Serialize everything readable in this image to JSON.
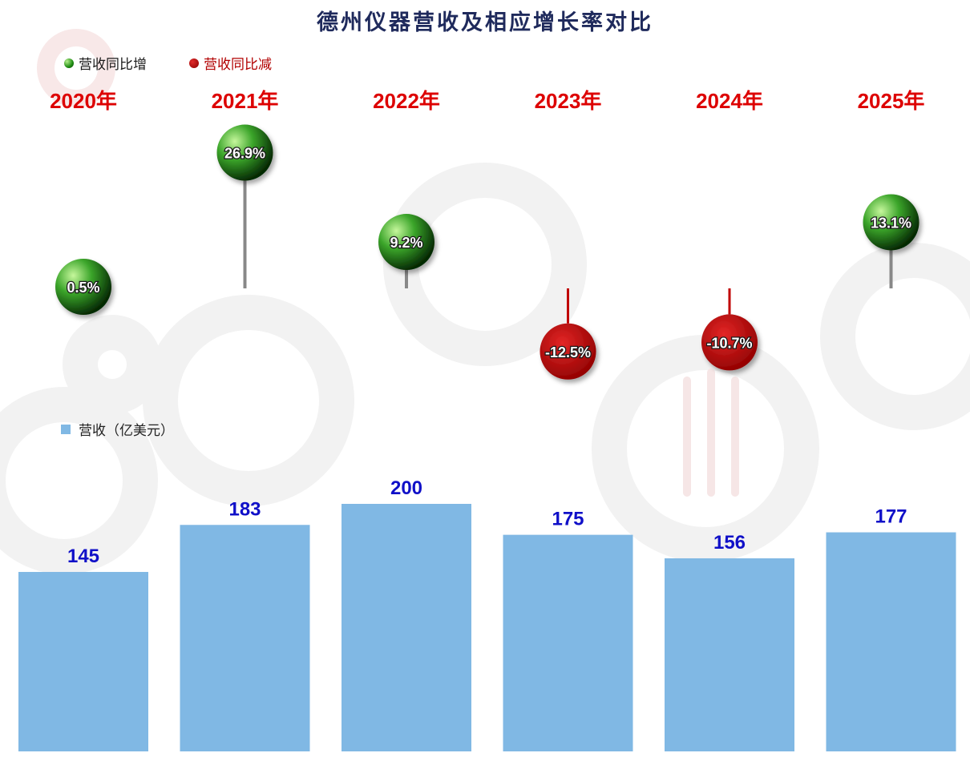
{
  "title": "德州仪器营收及相应增长率对比",
  "legend": {
    "increase_label": "营收同比增",
    "decrease_label": "营收同比减",
    "revenue_label": "营收（亿美元）"
  },
  "colors": {
    "bar": "#80b8e4",
    "bar_label": "#1010c8",
    "year_label": "#dd0000",
    "positive_ball": "#2e9e1e",
    "negative_ball": "#c00000",
    "title": "#1f2a5c"
  },
  "chart_data": [
    {
      "type": "bar",
      "series": [
        {
          "name": "营收（亿美元）",
          "values": [
            145,
            183,
            200,
            175,
            156,
            177
          ]
        }
      ],
      "categories": [
        "2020年",
        "2021年",
        "2022年",
        "2023年",
        "2024年",
        "2025年"
      ],
      "data_labels": [
        "145",
        "183",
        "200",
        "175",
        "156",
        "177"
      ]
    },
    {
      "type": "scatter",
      "series": [
        {
          "name": "营收同比增",
          "values": [
            0.5,
            26.9,
            9.2,
            null,
            null,
            13.1
          ]
        },
        {
          "name": "营收同比减",
          "values": [
            null,
            null,
            null,
            -12.5,
            -10.7,
            null
          ]
        }
      ],
      "categories": [
        "2020年",
        "2021年",
        "2022年",
        "2023年",
        "2024年",
        "2025年"
      ],
      "data_labels": [
        "0.5%",
        "26.9%",
        "9.2%",
        "-12.5%",
        "-10.7%",
        "13.1%"
      ]
    }
  ]
}
